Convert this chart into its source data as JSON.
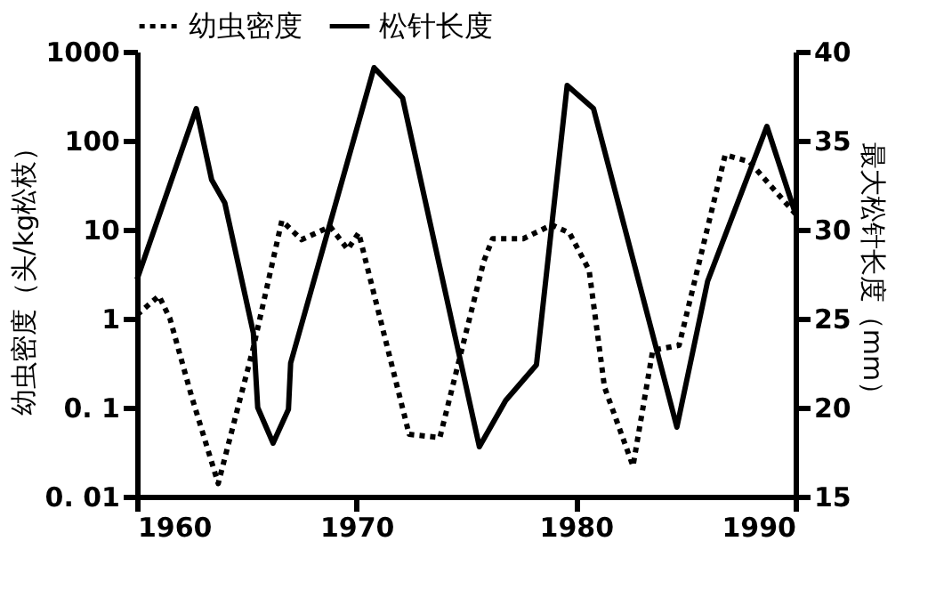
{
  "chart_data": {
    "type": "line",
    "xlabel": null,
    "ylabel": "幼虫密度（头/kg松枝）",
    "y2label": "最大松针长度（mm）",
    "xlim": [
      1960,
      1990
    ],
    "xticks": [
      1960,
      1970,
      1980,
      1990
    ],
    "ylim": [
      0.01,
      1000
    ],
    "yticks": [
      {
        "value": 0.01,
        "label": "0. 01"
      },
      {
        "value": 0.1,
        "label": "0. 1"
      },
      1,
      10,
      100,
      1000
    ],
    "y2lim": [
      15,
      40
    ],
    "y2ticks": [
      15,
      20,
      25,
      30,
      35,
      40
    ],
    "log": "y",
    "grid": false,
    "legend": "top",
    "marker": "none",
    "series": [
      {
        "name": "幼虫密度",
        "color": "#000000",
        "line_style": "dotted",
        "x": [
          1960,
          1961.0,
          1961.5,
          1962.5,
          1963.7,
          1965.3,
          1966.6,
          1967.5,
          1968.8,
          1969.6,
          1970.1,
          1972.4,
          1973.8,
          1975.8,
          1976.2,
          1977.6,
          1978.9,
          1979.7,
          1980.6,
          1981.3,
          1982.6,
          1983.5,
          1984.7,
          1986.8,
          1987.9,
          1990
        ],
        "values": [
          1.1,
          1.8,
          1.0,
          0.13,
          0.014,
          0.47,
          12.6,
          7.7,
          10.8,
          6.0,
          9.2,
          0.05,
          0.046,
          4.4,
          7.9,
          7.9,
          11.3,
          9.2,
          3.5,
          0.17,
          0.022,
          0.44,
          0.5,
          69,
          58,
          15
        ]
      },
      {
        "name": "松针长度",
        "color": "#000000",
        "line_style": "solid",
        "axis": "y2",
        "x": [
          1960,
          1962.7,
          1963.4,
          1964.0,
          1965.3,
          1965.5,
          1966.2,
          1966.9,
          1967.0,
          1970.8,
          1972.1,
          1975.6,
          1976.8,
          1978.2,
          1979.6,
          1980.8,
          1984.6,
          1986.0,
          1988.7,
          1990
        ],
        "values": [
          27.2,
          36.8,
          32.8,
          31.5,
          24.2,
          20,
          18,
          19.9,
          22.5,
          39.1,
          37.4,
          17.8,
          20.4,
          22.4,
          38.1,
          36.8,
          18.9,
          27.1,
          35.8,
          30.9
        ]
      }
    ]
  }
}
